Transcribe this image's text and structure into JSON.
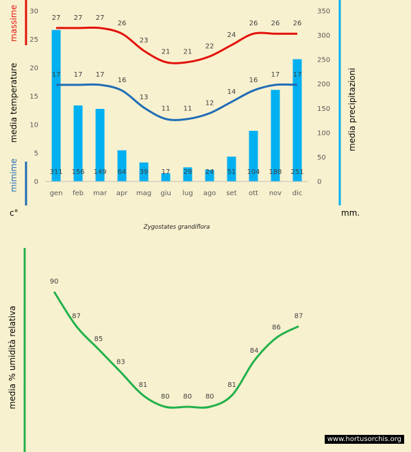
{
  "chart_data": [
    {
      "type": "bar+line",
      "subtitle": "Zygostates grandiflora",
      "categories": [
        "gen",
        "feb",
        "mar",
        "apr",
        "mag",
        "giu",
        "lug",
        "ago",
        "set",
        "ott",
        "nov",
        "dic"
      ],
      "ylabel_left": "media  temperature",
      "ylabel_right": "media  precipitazioni",
      "max_label": "massime",
      "min_label": "mimime",
      "unit_left": "c°",
      "unit_right": "mm.",
      "ylim_left": [
        0,
        30
      ],
      "ylim_right": [
        0,
        350
      ],
      "yticks_left": [
        "0",
        "5",
        "10",
        "15",
        "20",
        "25",
        "30"
      ],
      "yticks_right": [
        "0",
        "50",
        "100",
        "150",
        "200",
        "250",
        "300",
        "350"
      ],
      "series": [
        {
          "kind": "bar",
          "axis": "right",
          "values": [
            311,
            156,
            149,
            64,
            39,
            17,
            29,
            24,
            51,
            104,
            188,
            251
          ]
        },
        {
          "kind": "line",
          "axis": "left",
          "values": [
            27,
            27,
            27,
            26,
            23,
            21,
            21,
            22,
            24,
            26,
            26,
            26
          ]
        },
        {
          "kind": "line",
          "axis": "left",
          "values": [
            17,
            17,
            17,
            16,
            13,
            11,
            11,
            12,
            14,
            16,
            17,
            17
          ]
        }
      ],
      "colors": {
        "bars": "#00b0f0",
        "max": "#e3120b",
        "min": "#1f6cb5"
      }
    },
    {
      "type": "line",
      "ylabel": "media  %  umidità relativa",
      "values": [
        90,
        87,
        85,
        83,
        81,
        80,
        80,
        80,
        81,
        84,
        86,
        87
      ],
      "colors": {
        "line": "#22b14c"
      }
    }
  ],
  "watermark": "www.hortusorchis.org"
}
